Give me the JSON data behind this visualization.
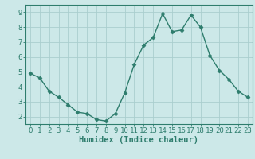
{
  "x": [
    0,
    1,
    2,
    3,
    4,
    5,
    6,
    7,
    8,
    9,
    10,
    11,
    12,
    13,
    14,
    15,
    16,
    17,
    18,
    19,
    20,
    21,
    22,
    23
  ],
  "y": [
    4.9,
    4.6,
    3.7,
    3.3,
    2.8,
    2.3,
    2.2,
    1.8,
    1.7,
    2.2,
    3.6,
    5.5,
    6.8,
    7.3,
    8.9,
    7.7,
    7.8,
    8.8,
    8.0,
    6.1,
    5.1,
    4.5,
    3.7,
    3.3
  ],
  "line_color": "#2e7d6d",
  "marker": "D",
  "marker_size": 2.5,
  "bg_color": "#cce8e8",
  "grid_color": "#aacece",
  "axis_color": "#2e7d6d",
  "xlabel": "Humidex (Indice chaleur)",
  "ylim": [
    1.5,
    9.5
  ],
  "xlim": [
    -0.5,
    23.5
  ],
  "yticks": [
    2,
    3,
    4,
    5,
    6,
    7,
    8,
    9
  ],
  "xticks": [
    0,
    1,
    2,
    3,
    4,
    5,
    6,
    7,
    8,
    9,
    10,
    11,
    12,
    13,
    14,
    15,
    16,
    17,
    18,
    19,
    20,
    21,
    22,
    23
  ],
  "xlabel_fontsize": 7.5,
  "tick_fontsize": 6.5,
  "linewidth": 1.0
}
